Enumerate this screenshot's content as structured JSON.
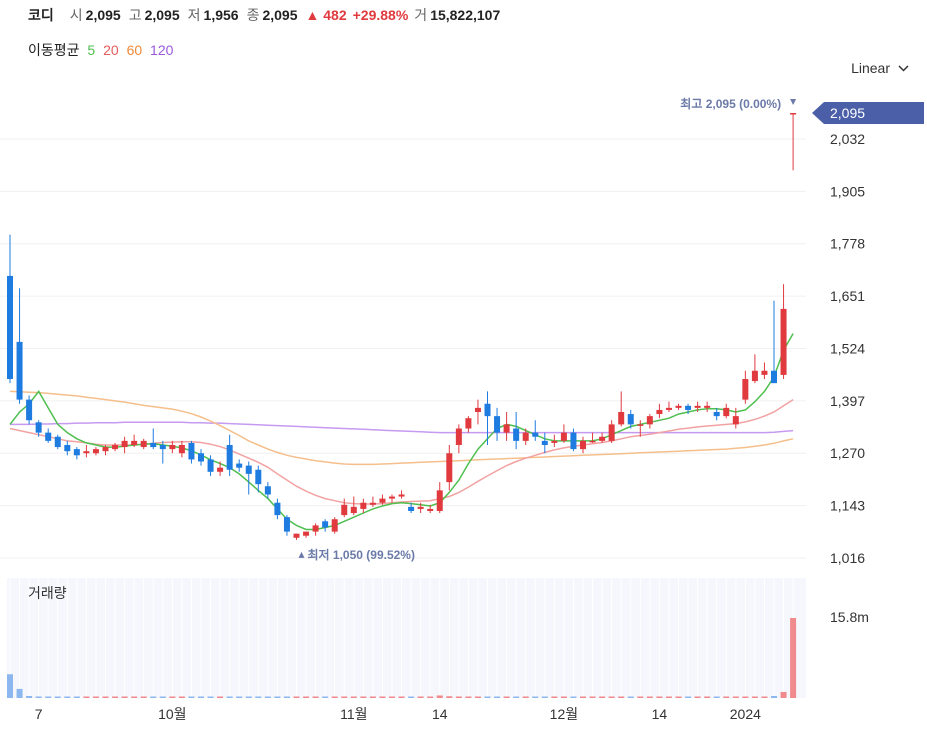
{
  "quote": {
    "name": "코디",
    "open_label": "시",
    "open": "2,095",
    "high_label": "고",
    "high": "2,095",
    "low_label": "저",
    "low": "1,956",
    "close_label": "종",
    "close": "2,095",
    "change": "▲ 482",
    "change_pct": "+29.88%",
    "volume_label": "거",
    "volume": "15,822,107"
  },
  "ma_legend": {
    "title": "이동평균",
    "p5": "5",
    "p20": "20",
    "p60": "60",
    "p120": "120"
  },
  "scale": {
    "label": "Linear"
  },
  "colors": {
    "up": "#e03a3e",
    "down": "#1e7be0",
    "ma5": "#4fbf4f",
    "ma20": "#f2a2a2",
    "ma60": "#f5bf8c",
    "ma120": "#c59af0",
    "price_tag": "#4a5fa8"
  },
  "chart_data": {
    "type": "candlestick",
    "y_ticks": [
      "1,016",
      "1,143",
      "1,270",
      "1,397",
      "1,524",
      "1,651",
      "1,778",
      "1,905",
      "2,032"
    ],
    "ylim": [
      1016,
      2095
    ],
    "x_ticks": [
      "7",
      "10월",
      "11월",
      "14",
      "12월",
      "14",
      "2024"
    ],
    "current_price_tag": "2,095",
    "max_annotation": "최고 2,095 (0.00%)",
    "min_annotation": "최저 1,050 (99.52%)",
    "volume_title": "거래량",
    "volume_tick": "15.8m",
    "candles": [
      [
        1700,
        1450,
        1800,
        1440
      ],
      [
        1540,
        1400,
        1670,
        1390
      ],
      [
        1400,
        1350,
        1410,
        1340
      ],
      [
        1345,
        1320,
        1350,
        1310
      ],
      [
        1320,
        1300,
        1330,
        1295
      ],
      [
        1310,
        1285,
        1315,
        1280
      ],
      [
        1290,
        1275,
        1300,
        1265
      ],
      [
        1280,
        1265,
        1285,
        1255
      ],
      [
        1270,
        1275,
        1290,
        1260
      ],
      [
        1270,
        1280,
        1285,
        1265
      ],
      [
        1275,
        1285,
        1290,
        1265
      ],
      [
        1280,
        1290,
        1295,
        1275
      ],
      [
        1285,
        1300,
        1310,
        1270
      ],
      [
        1290,
        1300,
        1315,
        1285
      ],
      [
        1285,
        1300,
        1305,
        1280
      ],
      [
        1295,
        1285,
        1330,
        1280
      ],
      [
        1290,
        1280,
        1300,
        1245
      ],
      [
        1280,
        1290,
        1300,
        1270
      ],
      [
        1270,
        1290,
        1300,
        1260
      ],
      [
        1295,
        1255,
        1300,
        1245
      ],
      [
        1270,
        1250,
        1280,
        1240
      ],
      [
        1255,
        1225,
        1265,
        1215
      ],
      [
        1225,
        1235,
        1250,
        1215
      ],
      [
        1290,
        1230,
        1315,
        1215
      ],
      [
        1245,
        1235,
        1255,
        1225
      ],
      [
        1240,
        1220,
        1250,
        1170
      ],
      [
        1230,
        1195,
        1240,
        1175
      ],
      [
        1190,
        1170,
        1200,
        1160
      ],
      [
        1150,
        1120,
        1160,
        1110
      ],
      [
        1115,
        1080,
        1120,
        1070
      ],
      [
        1065,
        1075,
        1075,
        1060
      ],
      [
        1070,
        1080,
        1080,
        1065
      ],
      [
        1080,
        1095,
        1100,
        1070
      ],
      [
        1105,
        1090,
        1110,
        1080
      ],
      [
        1080,
        1110,
        1115,
        1075
      ],
      [
        1120,
        1145,
        1160,
        1115
      ],
      [
        1125,
        1140,
        1165,
        1120
      ],
      [
        1135,
        1150,
        1160,
        1125
      ],
      [
        1145,
        1150,
        1165,
        1140
      ],
      [
        1150,
        1160,
        1170,
        1145
      ],
      [
        1160,
        1165,
        1170,
        1150
      ],
      [
        1165,
        1170,
        1180,
        1160
      ],
      [
        1140,
        1130,
        1150,
        1125
      ],
      [
        1135,
        1140,
        1150,
        1125
      ],
      [
        1130,
        1135,
        1145,
        1125
      ],
      [
        1130,
        1180,
        1200,
        1125
      ],
      [
        1200,
        1270,
        1290,
        1180
      ],
      [
        1290,
        1330,
        1340,
        1270
      ],
      [
        1330,
        1355,
        1360,
        1320
      ],
      [
        1370,
        1380,
        1400,
        1340
      ],
      [
        1390,
        1360,
        1420,
        1290
      ],
      [
        1360,
        1320,
        1380,
        1300
      ],
      [
        1320,
        1340,
        1370,
        1300
      ],
      [
        1330,
        1300,
        1370,
        1280
      ],
      [
        1300,
        1320,
        1330,
        1290
      ],
      [
        1320,
        1310,
        1350,
        1300
      ],
      [
        1300,
        1290,
        1320,
        1270
      ],
      [
        1295,
        1300,
        1315,
        1285
      ],
      [
        1300,
        1320,
        1340,
        1295
      ],
      [
        1320,
        1280,
        1330,
        1275
      ],
      [
        1280,
        1300,
        1310,
        1270
      ],
      [
        1300,
        1300,
        1320,
        1295
      ],
      [
        1300,
        1310,
        1320,
        1295
      ],
      [
        1300,
        1340,
        1350,
        1295
      ],
      [
        1340,
        1370,
        1420,
        1335
      ],
      [
        1365,
        1340,
        1375,
        1330
      ],
      [
        1340,
        1340,
        1350,
        1310
      ],
      [
        1340,
        1360,
        1365,
        1330
      ],
      [
        1365,
        1375,
        1390,
        1355
      ],
      [
        1375,
        1380,
        1395,
        1370
      ],
      [
        1380,
        1385,
        1390,
        1375
      ],
      [
        1385,
        1375,
        1390,
        1365
      ],
      [
        1380,
        1385,
        1395,
        1370
      ],
      [
        1380,
        1385,
        1395,
        1370
      ],
      [
        1370,
        1360,
        1380,
        1350
      ],
      [
        1360,
        1380,
        1390,
        1355
      ],
      [
        1340,
        1360,
        1380,
        1330
      ],
      [
        1400,
        1450,
        1470,
        1390
      ],
      [
        1445,
        1470,
        1510,
        1440
      ],
      [
        1460,
        1470,
        1490,
        1450
      ],
      [
        1470,
        1440,
        1640,
        1440
      ],
      [
        1460,
        1620,
        1680,
        1450
      ],
      [
        2095,
        2095,
        2095,
        1956
      ]
    ],
    "ma": {
      "p5": [
        1340,
        1370,
        1390,
        1420,
        1380,
        1340,
        1320,
        1305,
        1295,
        1290,
        1285,
        1285,
        1287,
        1290,
        1292,
        1293,
        1290,
        1287,
        1283,
        1276,
        1266,
        1254,
        1245,
        1235,
        1220,
        1200,
        1180,
        1160,
        1135,
        1110,
        1095,
        1085,
        1085,
        1090,
        1095,
        1105,
        1115,
        1125,
        1135,
        1142,
        1148,
        1150,
        1148,
        1145,
        1142,
        1150,
        1175,
        1205,
        1245,
        1280,
        1305,
        1330,
        1340,
        1335,
        1325,
        1315,
        1305,
        1300,
        1300,
        1300,
        1300,
        1300,
        1305,
        1315,
        1325,
        1335,
        1340,
        1345,
        1350,
        1355,
        1365,
        1370,
        1375,
        1378,
        1378,
        1375,
        1370,
        1375,
        1395,
        1420,
        1455,
        1520,
        1560
      ],
      "p20": [
        1330,
        1325,
        1320,
        1315,
        1310,
        1305,
        1300,
        1298,
        1295,
        1292,
        1290,
        1290,
        1290,
        1290,
        1292,
        1294,
        1296,
        1297,
        1298,
        1298,
        1296,
        1292,
        1286,
        1278,
        1268,
        1258,
        1248,
        1236,
        1220,
        1205,
        1190,
        1178,
        1168,
        1160,
        1155,
        1150,
        1148,
        1147,
        1147,
        1148,
        1150,
        1152,
        1153,
        1154,
        1155,
        1160,
        1165,
        1175,
        1188,
        1202,
        1215,
        1228,
        1240,
        1250,
        1258,
        1265,
        1272,
        1278,
        1283,
        1287,
        1290,
        1293,
        1296,
        1300,
        1305,
        1310,
        1313,
        1316,
        1320,
        1324,
        1328,
        1331,
        1334,
        1336,
        1338,
        1340,
        1342,
        1346,
        1352,
        1360,
        1370,
        1385,
        1400
      ],
      "p60": [
        1420,
        1419,
        1418,
        1417,
        1415,
        1413,
        1411,
        1409,
        1406,
        1403,
        1400,
        1397,
        1394,
        1390,
        1386,
        1383,
        1380,
        1377,
        1372,
        1366,
        1358,
        1348,
        1337,
        1325,
        1313,
        1300,
        1290,
        1280,
        1272,
        1265,
        1260,
        1256,
        1252,
        1249,
        1246,
        1244,
        1243,
        1243,
        1243,
        1244,
        1245,
        1246,
        1247,
        1248,
        1249,
        1250,
        1251,
        1252,
        1253,
        1254,
        1255,
        1256,
        1257,
        1258,
        1259,
        1260,
        1261,
        1262,
        1263,
        1264,
        1265,
        1266,
        1267,
        1268,
        1269,
        1270,
        1271,
        1272,
        1273,
        1274,
        1275,
        1276,
        1277,
        1278,
        1279,
        1280,
        1282,
        1284,
        1287,
        1290,
        1294,
        1300,
        1305
      ],
      "p120": [
        1340,
        1340,
        1340,
        1341,
        1341,
        1342,
        1342,
        1343,
        1343,
        1344,
        1344,
        1344,
        1345,
        1345,
        1345,
        1345,
        1345,
        1345,
        1345,
        1344,
        1344,
        1343,
        1343,
        1342,
        1341,
        1340,
        1339,
        1338,
        1337,
        1336,
        1335,
        1334,
        1333,
        1332,
        1331,
        1330,
        1329,
        1328,
        1327,
        1326,
        1325,
        1324,
        1323,
        1322,
        1321,
        1320,
        1320,
        1320,
        1320,
        1320,
        1320,
        1320,
        1320,
        1320,
        1320,
        1320,
        1320,
        1320,
        1320,
        1320,
        1320,
        1320,
        1320,
        1320,
        1320,
        1320,
        1320,
        1320,
        1320,
        1320,
        1320,
        1320,
        1320,
        1320,
        1320,
        1320,
        1320,
        1320,
        1320,
        1320,
        1321,
        1323,
        1325
      ]
    },
    "volume_max": 15822107,
    "volume": [
      4700000,
      1800000,
      400000,
      300000,
      250000,
      200000,
      200000,
      180000,
      150000,
      150000,
      200000,
      150000,
      180000,
      200000,
      150000,
      250000,
      200000,
      180000,
      150000,
      200000,
      150000,
      200000,
      150000,
      150000,
      180000,
      150000,
      120000,
      120000,
      120000,
      150000,
      200000,
      150000,
      120000,
      150000,
      150000,
      300000,
      200000,
      150000,
      200000,
      200000,
      150000,
      120000,
      250000,
      150000,
      200000,
      500000,
      350000,
      300000,
      250000,
      250000,
      250000,
      250000,
      200000,
      150000,
      300000,
      150000,
      150000,
      150000,
      200000,
      150000,
      150000,
      200000,
      150000,
      150000,
      150000,
      200000,
      150000,
      150000,
      200000,
      150000,
      150000,
      150000,
      150000,
      150000,
      150000,
      150000,
      150000,
      150000,
      200000,
      200000,
      400000,
      1200000,
      15822107
    ]
  }
}
